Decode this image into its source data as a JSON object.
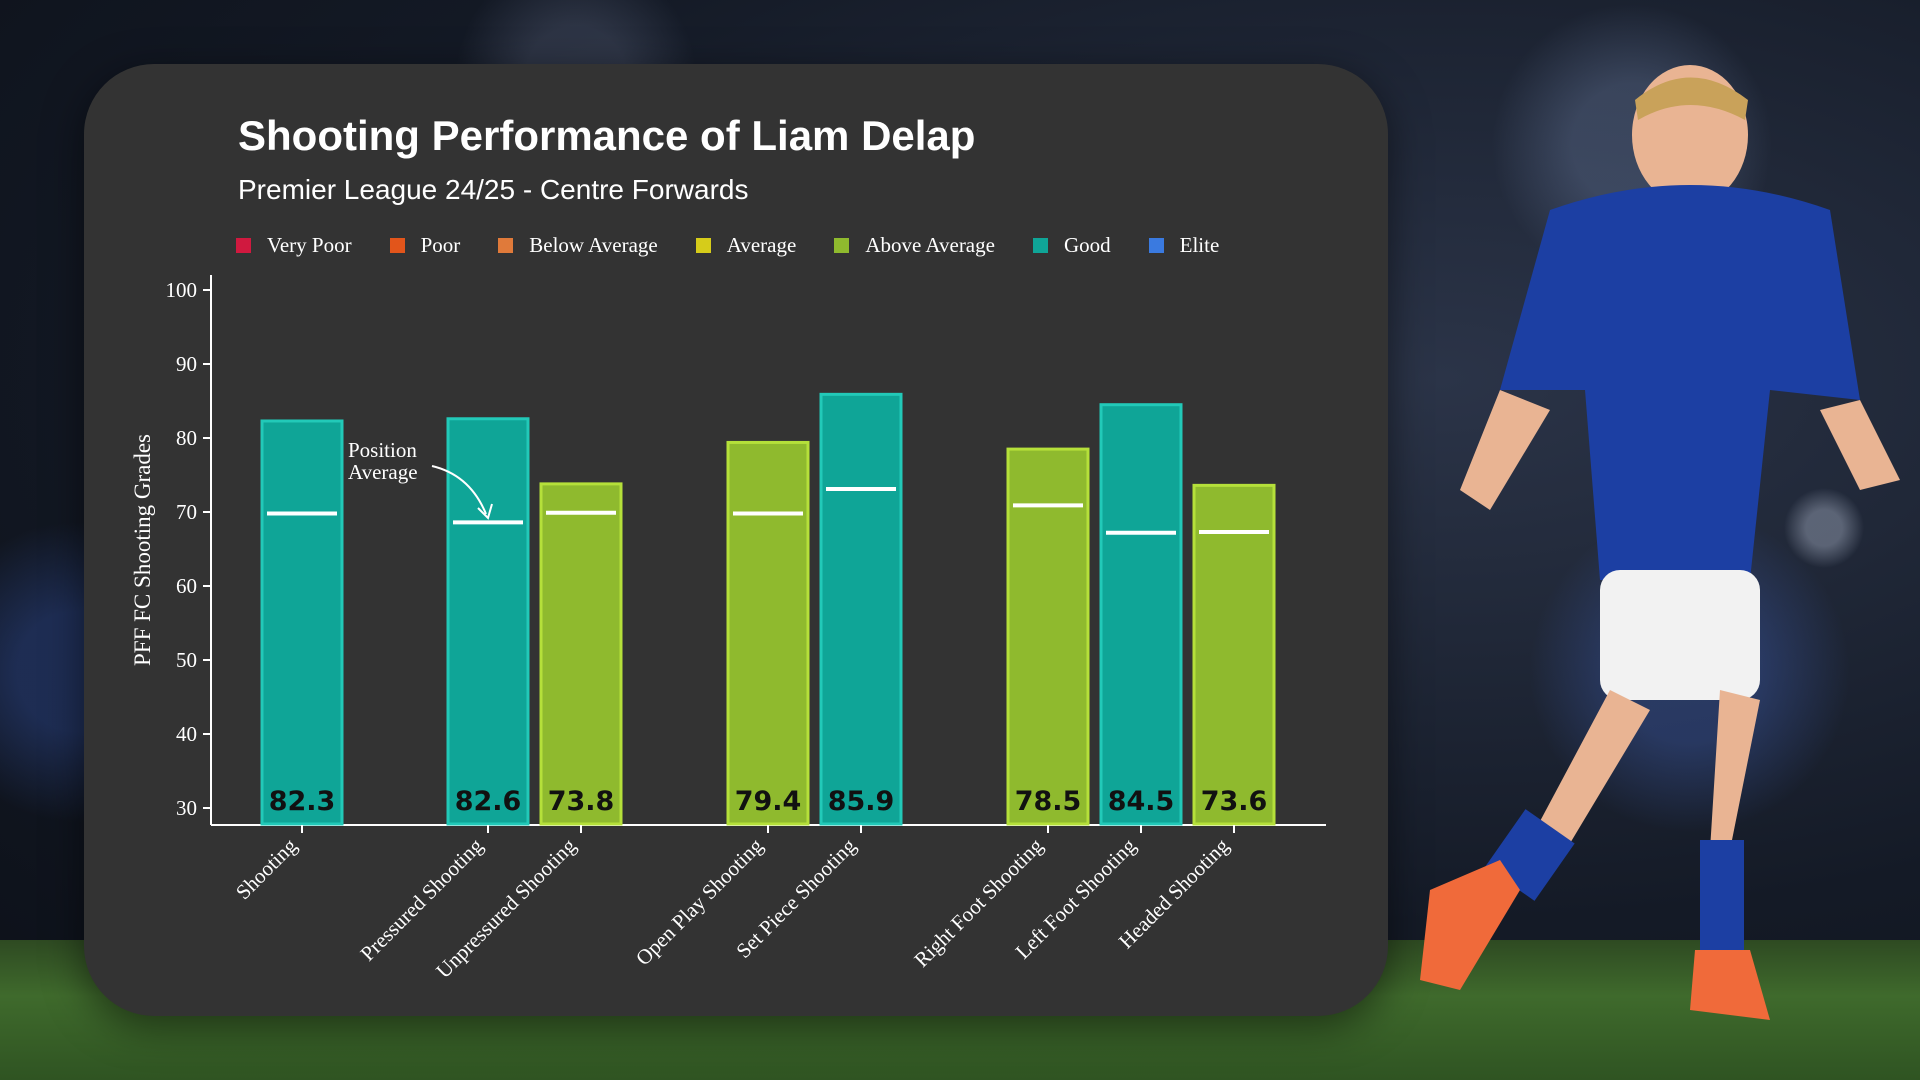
{
  "chart_data": {
    "type": "bar",
    "title": "Shooting Performance of Liam Delap",
    "subtitle": "Premier League 24/25 - Centre Forwards",
    "ylabel": "PFF FC Shooting Grades",
    "ylim": [
      30,
      100
    ],
    "yticks": [
      30,
      40,
      50,
      60,
      70,
      80,
      90,
      100
    ],
    "legend_position": "top",
    "legend": [
      {
        "label": "Very Poor",
        "color": "#d0193f"
      },
      {
        "label": "Poor",
        "color": "#e2551b"
      },
      {
        "label": "Below Average",
        "color": "#e07a3a"
      },
      {
        "label": "Average",
        "color": "#d6cc1a"
      },
      {
        "label": "Above Average",
        "color": "#8fba2e"
      },
      {
        "label": "Good",
        "color": "#0fa597"
      },
      {
        "label": "Elite",
        "color": "#3a7ae0"
      }
    ],
    "categories": [
      "Shooting",
      "Pressured Shooting",
      "Unpressured Shooting",
      "Open Play Shooting",
      "Set Piece Shooting",
      "Right Foot Shooting",
      "Left Foot Shooting",
      "Headed Shooting"
    ],
    "values": [
      82.3,
      82.6,
      73.8,
      79.4,
      85.9,
      78.5,
      84.5,
      73.6
    ],
    "position_average": [
      69.8,
      68.6,
      69.9,
      69.8,
      73.1,
      70.9,
      67.2,
      67.3
    ],
    "grades": [
      "Good",
      "Good",
      "Above Average",
      "Above Average",
      "Good",
      "Above Average",
      "Good",
      "Above Average"
    ],
    "annotation": {
      "line1": "Position",
      "line2": "Average"
    }
  }
}
